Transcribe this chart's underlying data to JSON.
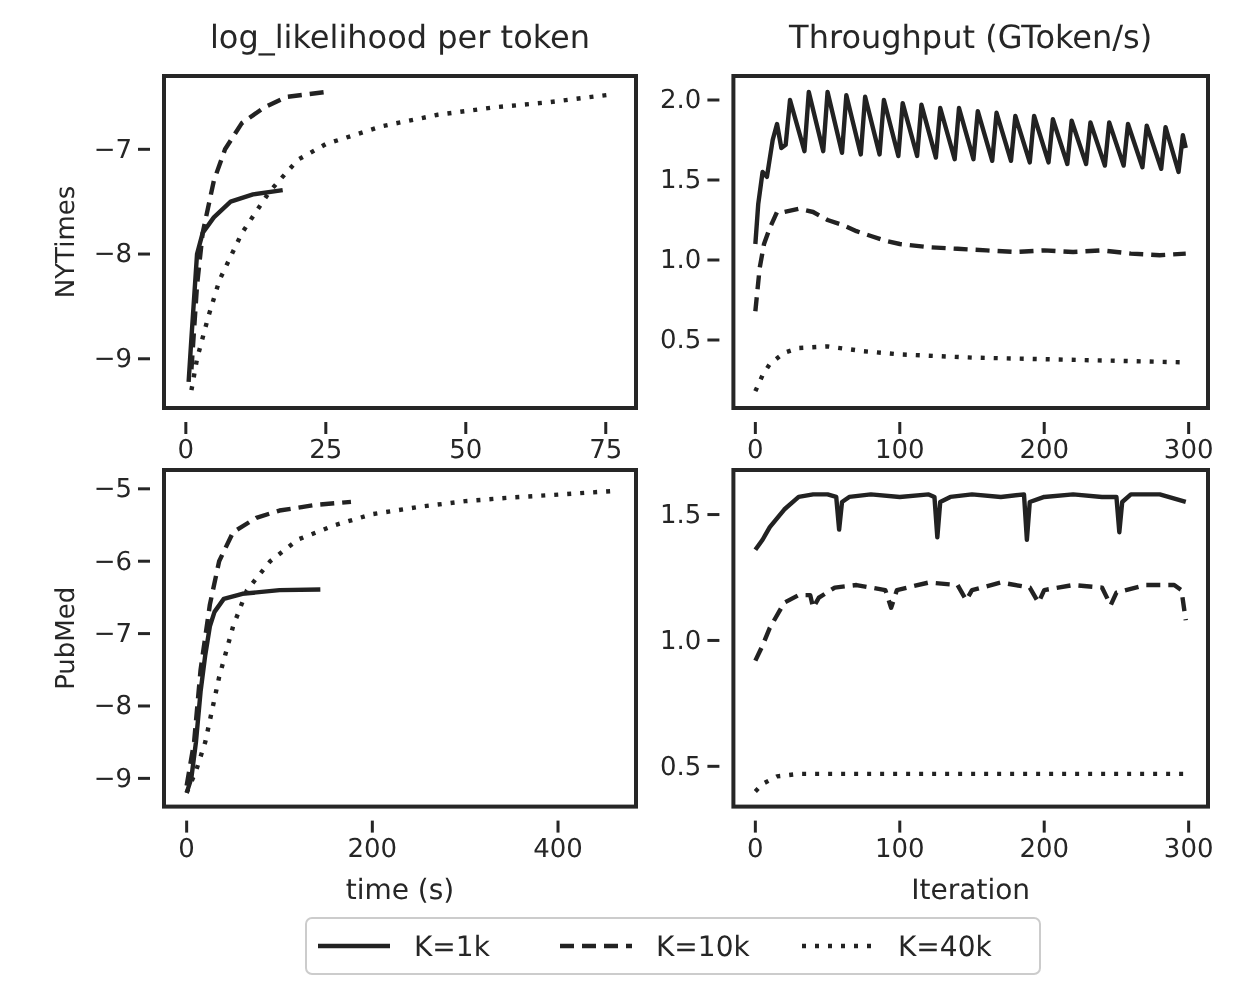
{
  "chart_data": [
    {
      "type": "line",
      "title": "log_likelihood per token",
      "ylabel": "NYTimes",
      "xlim": [
        -3.9,
        80.4
      ],
      "xticks": [
        0,
        25,
        50,
        75
      ],
      "ylim": [
        -9.47,
        -6.3
      ],
      "yticks": [
        {
          "value": -9,
          "label": "−9"
        },
        {
          "value": -8,
          "label": "−8"
        },
        {
          "value": -7,
          "label": "−7"
        }
      ],
      "grid": false,
      "series": [
        {
          "color": "#222222",
          "line_style": "solid",
          "x": [
            0.5,
            1,
            2,
            3,
            5,
            8,
            12,
            17.3
          ],
          "values": [
            -9.22,
            -8.8,
            -8.0,
            -7.8,
            -7.65,
            -7.5,
            -7.43,
            -7.39
          ]
        },
        {
          "color": "#222222",
          "line_style": "dashed",
          "x": [
            1,
            2,
            3,
            5,
            7,
            10,
            14,
            18,
            25.4
          ],
          "values": [
            -9.1,
            -8.3,
            -7.8,
            -7.3,
            -7.0,
            -6.75,
            -6.6,
            -6.5,
            -6.45
          ]
        },
        {
          "color": "#222222",
          "line_style": "dotted",
          "x": [
            1,
            2,
            4,
            6,
            10,
            15,
            20,
            25,
            35,
            45,
            55,
            65,
            75.4
          ],
          "values": [
            -9.3,
            -9.0,
            -8.6,
            -8.25,
            -7.8,
            -7.4,
            -7.1,
            -6.95,
            -6.78,
            -6.67,
            -6.6,
            -6.55,
            -6.48
          ]
        }
      ]
    },
    {
      "type": "line",
      "title": "Throughput (GToken/s)",
      "xlim": [
        -15.2,
        313.4
      ],
      "xticks": [
        0,
        100,
        200,
        300
      ],
      "ylim": [
        0.075,
        2.15
      ],
      "yticks": [
        {
          "value": 0.5,
          "label": "0.5"
        },
        {
          "value": 1,
          "label": "1.0"
        },
        {
          "value": 1.5,
          "label": "1.5"
        },
        {
          "value": 2,
          "label": "2.0"
        }
      ],
      "grid": false,
      "series": [
        {
          "color": "#222222",
          "line_style": "solid",
          "x": [
            0,
            2,
            5,
            8,
            12,
            15,
            18,
            21,
            24,
            34,
            37,
            47,
            50,
            60,
            63,
            73,
            76,
            86,
            89,
            99,
            102,
            112,
            115,
            125,
            128,
            138,
            141,
            151,
            154,
            164,
            167,
            177,
            180,
            190,
            193,
            203,
            206,
            216,
            219,
            229,
            232,
            242,
            245,
            255,
            258,
            268,
            271,
            281,
            284,
            293,
            296,
            298
          ],
          "values": [
            1.1,
            1.35,
            1.55,
            1.52,
            1.75,
            1.85,
            1.7,
            1.72,
            2.0,
            1.68,
            2.05,
            1.68,
            2.05,
            1.67,
            2.03,
            1.66,
            2.02,
            1.66,
            2.0,
            1.65,
            1.98,
            1.65,
            1.97,
            1.64,
            1.95,
            1.63,
            1.95,
            1.63,
            1.93,
            1.62,
            1.92,
            1.62,
            1.9,
            1.61,
            1.9,
            1.61,
            1.88,
            1.6,
            1.87,
            1.6,
            1.86,
            1.59,
            1.86,
            1.59,
            1.85,
            1.58,
            1.84,
            1.57,
            1.83,
            1.55,
            1.78,
            1.7
          ]
        },
        {
          "color": "#222222",
          "line_style": "dashed",
          "x": [
            0,
            3,
            6,
            10,
            15,
            20,
            30,
            40,
            50,
            60,
            70,
            80,
            90,
            100,
            120,
            140,
            160,
            180,
            200,
            220,
            240,
            260,
            280,
            298
          ],
          "values": [
            0.68,
            0.95,
            1.1,
            1.2,
            1.3,
            1.3,
            1.32,
            1.3,
            1.25,
            1.22,
            1.18,
            1.15,
            1.12,
            1.1,
            1.08,
            1.07,
            1.06,
            1.05,
            1.06,
            1.05,
            1.06,
            1.04,
            1.03,
            1.04
          ]
        },
        {
          "color": "#222222",
          "line_style": "dotted",
          "x": [
            0,
            5,
            10,
            20,
            30,
            50,
            75,
            100,
            150,
            200,
            250,
            298
          ],
          "values": [
            0.18,
            0.28,
            0.35,
            0.42,
            0.45,
            0.46,
            0.43,
            0.41,
            0.39,
            0.38,
            0.37,
            0.36
          ]
        }
      ]
    },
    {
      "type": "line",
      "ylabel": "PubMed",
      "xlabel": "time (s)",
      "legend": "bottom",
      "xlim": [
        -24.4,
        484
      ],
      "xticks": [
        0,
        200,
        400
      ],
      "ylim": [
        -9.39,
        -4.74
      ],
      "yticks": [
        {
          "value": -9,
          "label": "−9"
        },
        {
          "value": -8,
          "label": "−8"
        },
        {
          "value": -7,
          "label": "−7"
        },
        {
          "value": -6,
          "label": "−6"
        },
        {
          "value": -5,
          "label": "−5"
        }
      ],
      "grid": false,
      "series": [
        {
          "name": "K=1k",
          "color": "#222222",
          "line_style": "solid",
          "x": [
            0,
            5,
            10,
            15,
            20,
            25,
            30,
            40,
            60,
            100,
            144
          ],
          "values": [
            -9.2,
            -9.0,
            -8.5,
            -7.8,
            -7.3,
            -6.9,
            -6.7,
            -6.52,
            -6.45,
            -6.4,
            -6.39
          ]
        },
        {
          "name": "K=10k",
          "color": "#222222",
          "line_style": "dashed",
          "x": [
            0,
            8,
            15,
            25,
            35,
            50,
            75,
            100,
            140,
            177
          ],
          "values": [
            -9.1,
            -8.5,
            -7.5,
            -6.6,
            -6.0,
            -5.6,
            -5.4,
            -5.3,
            -5.22,
            -5.18
          ]
        },
        {
          "name": "K=40k",
          "color": "#222222",
          "line_style": "dotted",
          "x": [
            0,
            10,
            20,
            35,
            50,
            65,
            90,
            120,
            160,
            200,
            250,
            300,
            350,
            400,
            460
          ],
          "values": [
            -9.2,
            -8.9,
            -8.5,
            -7.6,
            -6.9,
            -6.4,
            -6.0,
            -5.7,
            -5.5,
            -5.35,
            -5.25,
            -5.17,
            -5.12,
            -5.08,
            -5.03
          ]
        }
      ]
    },
    {
      "type": "line",
      "xlabel": "Iteration",
      "xlim": [
        -15.2,
        313.4
      ],
      "xticks": [
        0,
        100,
        200,
        300
      ],
      "ylim": [
        0.34,
        1.677
      ],
      "yticks": [
        {
          "value": 0.5,
          "label": "0.5"
        },
        {
          "value": 1,
          "label": "1.0"
        },
        {
          "value": 1.5,
          "label": "1.5"
        }
      ],
      "grid": false,
      "series": [
        {
          "color": "#222222",
          "line_style": "solid",
          "x": [
            0,
            5,
            10,
            20,
            30,
            40,
            50,
            56,
            58,
            60,
            65,
            80,
            100,
            120,
            124,
            126,
            128,
            135,
            150,
            170,
            186,
            188,
            190,
            200,
            220,
            240,
            250,
            252,
            254,
            260,
            280,
            298
          ],
          "values": [
            1.36,
            1.4,
            1.45,
            1.52,
            1.57,
            1.58,
            1.58,
            1.57,
            1.44,
            1.55,
            1.57,
            1.58,
            1.57,
            1.58,
            1.57,
            1.41,
            1.55,
            1.57,
            1.58,
            1.57,
            1.58,
            1.4,
            1.55,
            1.57,
            1.58,
            1.57,
            1.57,
            1.43,
            1.55,
            1.58,
            1.58,
            1.55
          ]
        },
        {
          "color": "#222222",
          "line_style": "dashed",
          "x": [
            0,
            5,
            10,
            20,
            30,
            38,
            40,
            44,
            55,
            70,
            90,
            94,
            98,
            120,
            140,
            146,
            150,
            170,
            190,
            196,
            200,
            220,
            240,
            246,
            250,
            270,
            290,
            295,
            298
          ],
          "values": [
            0.92,
            0.98,
            1.05,
            1.15,
            1.18,
            1.18,
            1.13,
            1.17,
            1.21,
            1.22,
            1.2,
            1.13,
            1.2,
            1.23,
            1.22,
            1.16,
            1.2,
            1.23,
            1.21,
            1.15,
            1.2,
            1.22,
            1.21,
            1.14,
            1.19,
            1.22,
            1.22,
            1.2,
            1.08
          ]
        },
        {
          "color": "#222222",
          "line_style": "dotted",
          "x": [
            0,
            5,
            15,
            30,
            100,
            200,
            298
          ],
          "values": [
            0.4,
            0.43,
            0.46,
            0.47,
            0.47,
            0.47,
            0.47
          ]
        }
      ]
    }
  ]
}
